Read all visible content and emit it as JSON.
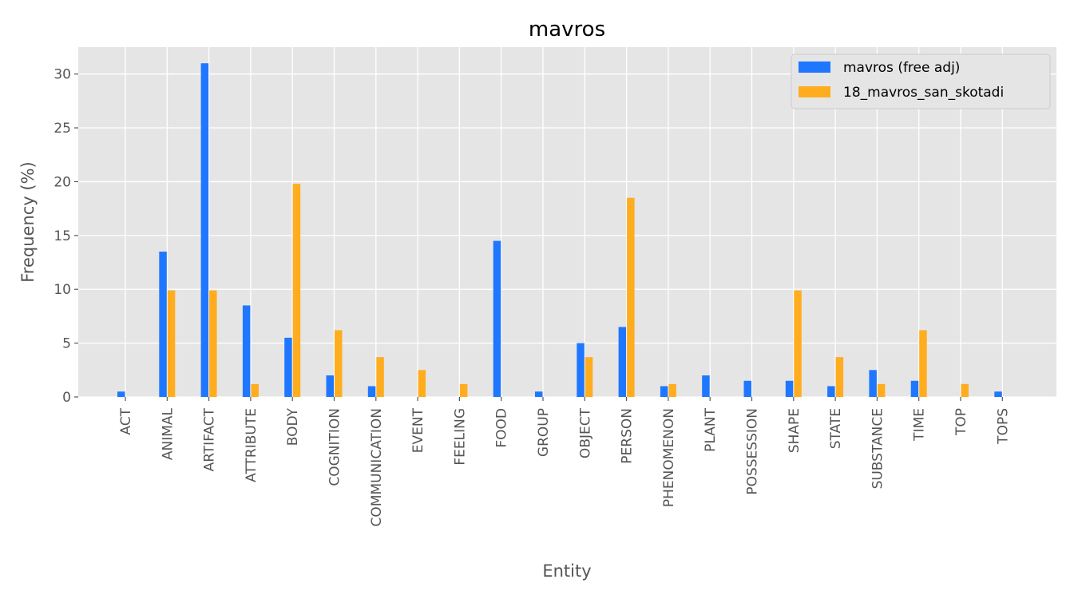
{
  "chart_data": {
    "type": "bar",
    "title": "mavros",
    "xlabel": "Entity",
    "ylabel": "Frequency (%)",
    "ylim": [
      0,
      32.5
    ],
    "yticks": [
      0,
      5,
      10,
      15,
      20,
      25,
      30
    ],
    "grid": true,
    "legend_position": "top-right",
    "categories": [
      "ACT",
      "ANIMAL",
      "ARTIFACT",
      "ATTRIBUTE",
      "BODY",
      "COGNITION",
      "COMMUNICATION",
      "EVENT",
      "FEELING",
      "FOOD",
      "GROUP",
      "OBJECT",
      "PERSON",
      "PHENOMENON",
      "PLANT",
      "POSSESSION",
      "SHAPE",
      "STATE",
      "SUBSTANCE",
      "TIME",
      "TOP",
      "TOPS"
    ],
    "series": [
      {
        "name": "mavros (free adj)",
        "color": "#1f77ff",
        "values": [
          0.5,
          13.5,
          31.0,
          8.5,
          5.5,
          2.0,
          1.0,
          0,
          0,
          14.5,
          0.5,
          5.0,
          6.5,
          1.0,
          2.0,
          1.5,
          1.5,
          1.0,
          2.5,
          1.5,
          0,
          0.5
        ]
      },
      {
        "name": "18_mavros_san_skotadi",
        "color": "#ffad1f",
        "values": [
          0,
          9.9,
          9.9,
          1.2,
          19.8,
          6.2,
          3.7,
          2.5,
          1.2,
          0,
          0,
          3.7,
          18.5,
          1.2,
          0,
          0,
          9.9,
          3.7,
          1.2,
          6.2,
          1.2,
          0
        ]
      }
    ]
  }
}
